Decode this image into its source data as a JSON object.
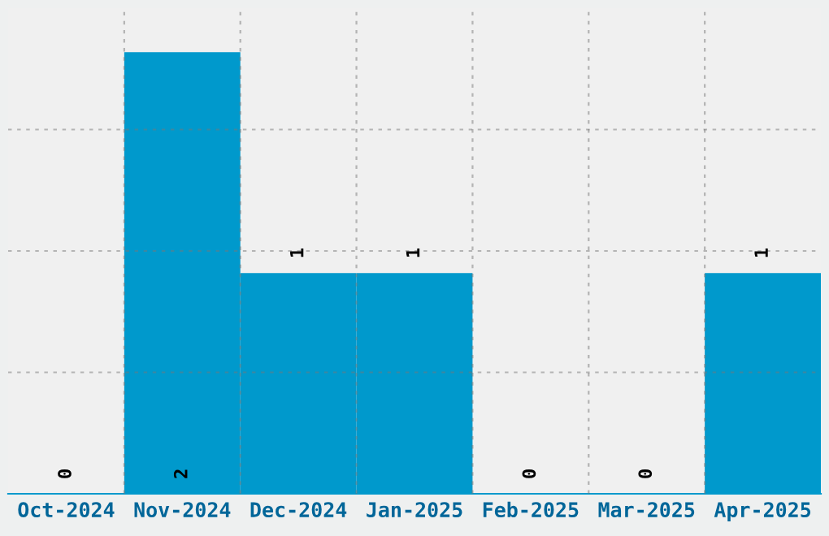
{
  "chart_data": {
    "type": "bar",
    "categories": [
      "Oct-2024",
      "Nov-2024",
      "Dec-2024",
      "Jan-2025",
      "Feb-2025",
      "Mar-2025",
      "Apr-2025"
    ],
    "values": [
      0,
      2,
      1,
      1,
      0,
      0,
      1
    ],
    "color": "#0099cc",
    "ylim": [
      0,
      2.2
    ],
    "yticks": [
      {
        "value": 0.55,
        "label": null
      },
      {
        "value": 1.1,
        "label": null
      },
      {
        "value": 1.65,
        "label": null
      }
    ],
    "tick_labels": "x",
    "grid": true,
    "data_labels": true
  }
}
